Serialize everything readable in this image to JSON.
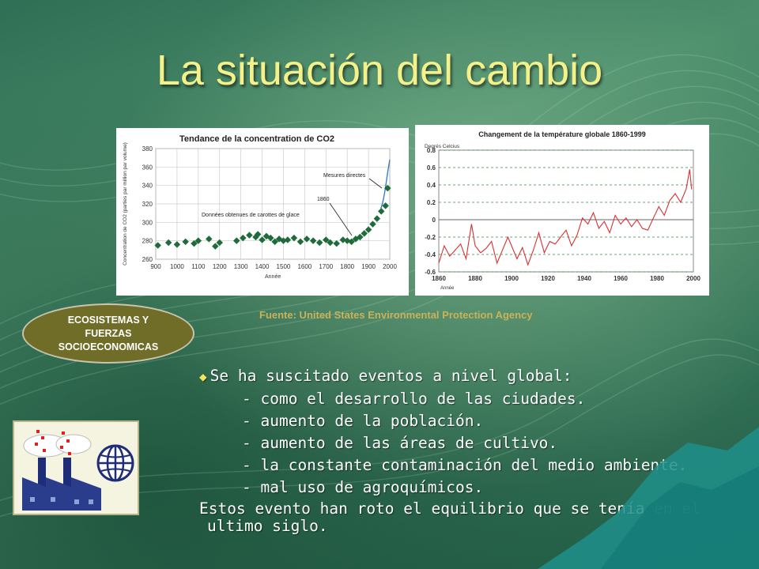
{
  "slide": {
    "title": "La situación del cambio",
    "source": "Fuente: United States Environmental Protection Agency",
    "badge": [
      "ECOSISTEMAS Y",
      "FUERZAS",
      "SOCIOECONOMICAS"
    ],
    "lead": "Se ha suscitado eventos a nivel global:",
    "items": [
      "- como el desarrollo de las ciudades.",
      "- aumento de la población.",
      "- aumento de las áreas de cultivo.",
      "- la constante contaminación del medio ambiente.",
      "- mal uso de agroquímicos."
    ],
    "closing": [
      "Estos evento han roto el equilibrio que se tenía en el",
      "ultimo siglo."
    ]
  },
  "colors": {
    "title": "#f4f08a",
    "source": "#c9b25a",
    "badge": "#6f6d27",
    "co2_marker": "#1f6b3a",
    "temp_line": "#d93030"
  },
  "icons": [
    "diamond-bullet-icon",
    "factory-pollution-icon",
    "globe-icon"
  ],
  "chart_data": [
    {
      "type": "scatter",
      "title": "Tendance de la concentration de CO2",
      "xlabel": "Année",
      "ylabel": "Concentration de CO2 (parties par million par volume)",
      "xlim": [
        900,
        2000
      ],
      "ylim": [
        260,
        380
      ],
      "xticks": [
        "900",
        "1000",
        "1100",
        "1200",
        "1300",
        "1400",
        "1500",
        "1600",
        "1700",
        "1800",
        "1900",
        "2000"
      ],
      "yticks": [
        "260",
        "280",
        "300",
        "320",
        "340",
        "360",
        "380"
      ],
      "annotations": [
        "Mesures directes",
        "1860",
        "Données obtenues de carottes de glace"
      ],
      "grid": true,
      "x": [
        910,
        960,
        1000,
        1040,
        1080,
        1100,
        1150,
        1180,
        1200,
        1280,
        1310,
        1340,
        1370,
        1380,
        1400,
        1420,
        1440,
        1460,
        1480,
        1500,
        1520,
        1550,
        1580,
        1610,
        1640,
        1670,
        1700,
        1720,
        1750,
        1780,
        1800,
        1820,
        1840,
        1860,
        1880,
        1900,
        1920,
        1940,
        1960,
        1980,
        1990
      ],
      "y": [
        275,
        278,
        276,
        279,
        277,
        280,
        282,
        274,
        278,
        280,
        283,
        286,
        284,
        287,
        281,
        285,
        283,
        279,
        282,
        280,
        281,
        283,
        279,
        282,
        280,
        278,
        281,
        278,
        277,
        281,
        280,
        279,
        282,
        284,
        288,
        292,
        298,
        304,
        312,
        318,
        337
      ],
      "direct_x": [
        1958,
        1965,
        1970,
        1975,
        1980,
        1985,
        1990,
        1995,
        2000
      ],
      "direct_y": [
        315,
        320,
        325,
        331,
        338,
        346,
        354,
        361,
        368
      ]
    },
    {
      "type": "line",
      "title": "Changement de la température globale 1860-1999",
      "xlabel": "Année",
      "ylabel": "Degrés Celcius",
      "xlim": [
        1860,
        2000
      ],
      "ylim": [
        -0.6,
        0.8
      ],
      "xticks": [
        "1860",
        "1880",
        "1900",
        "1920",
        "1940",
        "1960",
        "1980",
        "2000"
      ],
      "yticks": [
        "0.8",
        "0.6",
        "0.4",
        "0.2",
        "0",
        "-0.2",
        "-0.4",
        "-0.6"
      ],
      "grid": true,
      "x": [
        1860,
        1863,
        1866,
        1869,
        1872,
        1875,
        1878,
        1880,
        1883,
        1886,
        1889,
        1892,
        1895,
        1898,
        1900,
        1903,
        1906,
        1909,
        1912,
        1915,
        1918,
        1921,
        1924,
        1927,
        1930,
        1933,
        1936,
        1939,
        1942,
        1945,
        1948,
        1951,
        1954,
        1957,
        1960,
        1963,
        1966,
        1969,
        1972,
        1975,
        1978,
        1981,
        1984,
        1987,
        1990,
        1993,
        1996,
        1998,
        1999
      ],
      "y": [
        -0.5,
        -0.3,
        -0.42,
        -0.35,
        -0.28,
        -0.45,
        -0.05,
        -0.3,
        -0.38,
        -0.33,
        -0.25,
        -0.5,
        -0.35,
        -0.2,
        -0.3,
        -0.45,
        -0.32,
        -0.52,
        -0.35,
        -0.15,
        -0.38,
        -0.25,
        -0.28,
        -0.2,
        -0.12,
        -0.3,
        -0.18,
        0.02,
        -0.05,
        0.08,
        -0.1,
        -0.02,
        -0.15,
        0.05,
        -0.05,
        0.02,
        -0.08,
        0.0,
        -0.1,
        -0.12,
        0.02,
        0.15,
        0.05,
        0.22,
        0.3,
        0.2,
        0.35,
        0.58,
        0.35
      ]
    }
  ]
}
